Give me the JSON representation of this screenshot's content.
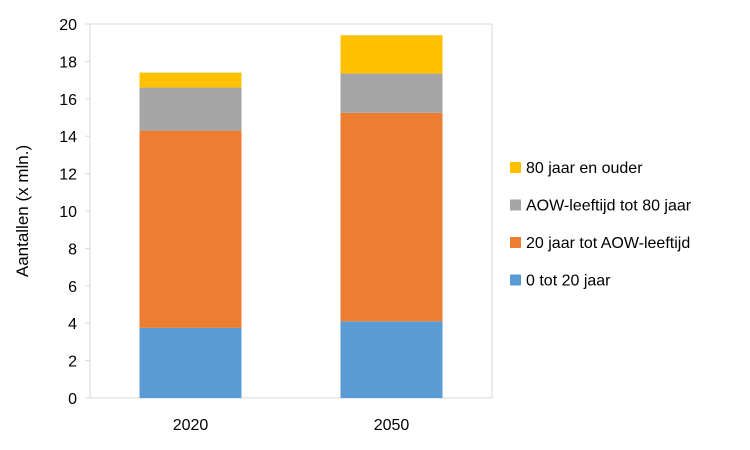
{
  "chart_data": {
    "type": "bar",
    "stacked": true,
    "title": "",
    "xlabel": "",
    "ylabel": "Aantallen (x mln.)",
    "categories": [
      "2020",
      "2050"
    ],
    "ylim": [
      0,
      20
    ],
    "yticks": [
      0,
      2,
      4,
      6,
      8,
      10,
      12,
      14,
      16,
      18,
      20
    ],
    "grid": false,
    "legend_position": "right",
    "series": [
      {
        "name": "0 tot 20 jaar",
        "color": "#5B9BD5",
        "values": [
          3.75,
          4.1
        ]
      },
      {
        "name": "20 jaar tot AOW-leeftijd",
        "color": "#ED7D31",
        "values": [
          10.55,
          11.15
        ]
      },
      {
        "name": "AOW-leeftijd tot 80 jaar",
        "color": "#A5A5A5",
        "values": [
          2.3,
          2.1
        ]
      },
      {
        "name": "80 jaar en ouder",
        "color": "#FFC000",
        "values": [
          0.8,
          2.05
        ]
      }
    ]
  }
}
